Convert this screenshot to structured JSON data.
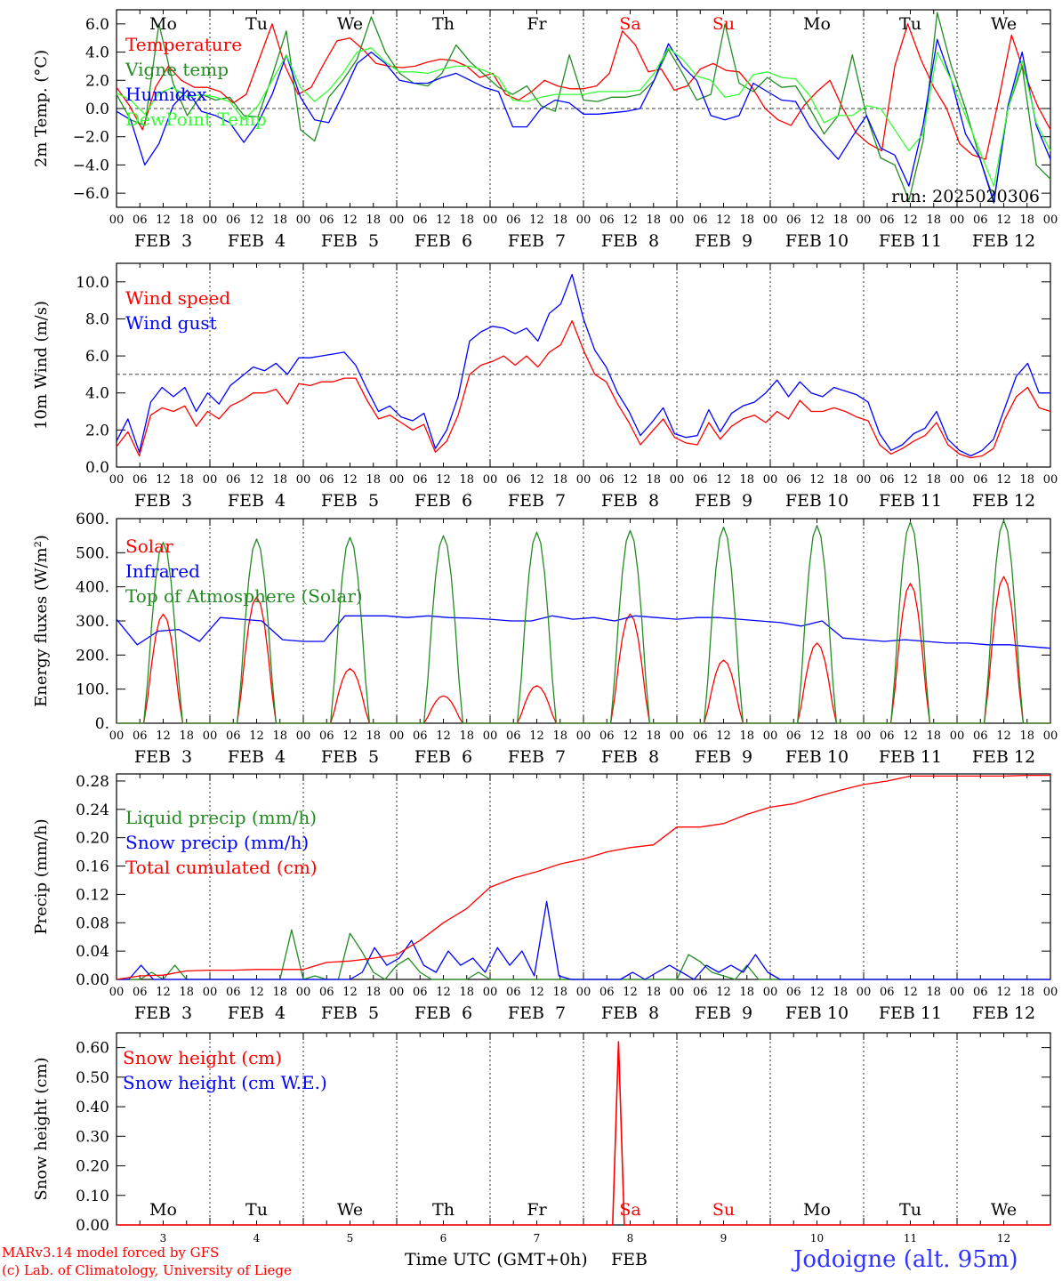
{
  "footer": {
    "model_line1": "MARv3.14 model forced by GFS",
    "model_line2": "(c) Lab. of Climatology, University of Liege",
    "xlabel": "Time UTC (GMT+0h)",
    "month": "FEB",
    "station": "Jodoigne (alt. 95m)",
    "colors": {
      "model": "#ff0000",
      "station": "#3333ff"
    }
  },
  "chart_data": [
    {
      "type": "line",
      "ylabel": "2m Temp. (°C)",
      "ylim": [
        -7,
        7
      ],
      "yticks": [
        -6,
        -4,
        -2,
        0,
        2,
        4,
        6
      ],
      "yticklabels": [
        "−6.0",
        "−4.0",
        "−2.0",
        "0.0",
        "2.0",
        "4.0",
        "6.0"
      ],
      "zero_line": 0,
      "annotation": "run: 2025020306",
      "weekdays": [
        "Mo",
        "Tu",
        "We",
        "Th",
        "Fr",
        "Sa",
        "Su",
        "Mo",
        "Tu",
        "We"
      ],
      "weekday_colors": [
        "#000000",
        "#000000",
        "#000000",
        "#000000",
        "#000000",
        "#ff0000",
        "#ff0000",
        "#000000",
        "#000000",
        "#000000"
      ],
      "hour_ticks": [
        "00",
        "06",
        "12",
        "18"
      ],
      "date_labels": [
        "FEB  3",
        "FEB  4",
        "FEB  5",
        "FEB  6",
        "FEB  7",
        "FEB  8",
        "FEB  9",
        "FEB 10",
        "FEB 11",
        "FEB 12"
      ],
      "legend_placement": "top-left",
      "x_hours": [
        0,
        3,
        6,
        9,
        12,
        15,
        18,
        21,
        24,
        27,
        30,
        33,
        36,
        39,
        42,
        45,
        48,
        51,
        54,
        57,
        60,
        63,
        66,
        69,
        72,
        75,
        78,
        81,
        84,
        87,
        90,
        93,
        96,
        99,
        102,
        105,
        108,
        111,
        114,
        117,
        120,
        123,
        126,
        129,
        132,
        135,
        138,
        141,
        144,
        147,
        150,
        153,
        156,
        159,
        162,
        165,
        168,
        171,
        174,
        177,
        180,
        183,
        186,
        189,
        192,
        195,
        198,
        201,
        204,
        207,
        210,
        213,
        216,
        219,
        222,
        225,
        228,
        231,
        234,
        237,
        240
      ],
      "series": [
        {
          "name": "Temperature",
          "color": "#ff0000",
          "values": [
            1.5,
            0.2,
            -1.5,
            1.5,
            3.0,
            2.0,
            1.5,
            1.5,
            1.2,
            0.4,
            1.0,
            3.5,
            6.0,
            3.0,
            1.0,
            1.5,
            3.2,
            4.8,
            5.0,
            4.2,
            3.2,
            3.0,
            2.9,
            3.0,
            3.3,
            3.5,
            3.4,
            3.0,
            2.2,
            2.5,
            1.0,
            0.6,
            1.2,
            2.0,
            1.6,
            1.4,
            1.4,
            1.6,
            2.5,
            5.5,
            4.5,
            2.6,
            2.8,
            1.3,
            1.6,
            2.8,
            3.2,
            2.7,
            2.6,
            1.5,
            0.0,
            -0.8,
            -1.2,
            0.2,
            1.2,
            2.0,
            0.0,
            -1.7,
            -2.5,
            -3.0,
            3.0,
            6.0,
            3.5,
            1.5,
            0.0,
            -2.5,
            -3.3,
            -3.6,
            0.6,
            5.2,
            2.5,
            0.2,
            -1.5
          ]
        },
        {
          "name": "Vigne temp",
          "color": "#228b22",
          "values": [
            1.0,
            -0.8,
            -1.2,
            6.0,
            1.8,
            -0.5,
            1.0,
            0.6,
            0.8,
            -0.5,
            -0.6,
            2.3,
            5.5,
            -1.5,
            -2.3,
            0.8,
            2.0,
            3.5,
            6.5,
            4.0,
            2.5,
            1.8,
            1.6,
            2.5,
            4.5,
            3.3,
            2.4,
            1.5,
            1.0,
            1.6,
            0.2,
            -0.2,
            3.8,
            0.6,
            0.5,
            0.8,
            0.8,
            1.0,
            2.0,
            4.2,
            2.5,
            0.6,
            1.0,
            6.0,
            1.8,
            1.2,
            2.2,
            1.5,
            1.6,
            0.0,
            -1.8,
            -0.5,
            3.8,
            -0.5,
            -3.5,
            -4.0,
            -6.5,
            -2.3,
            6.8,
            3.0,
            0.0,
            -3.5,
            -6.5,
            0.0,
            3.0,
            -4.0,
            -5.0
          ]
        },
        {
          "name": "Humidex",
          "color": "#0000ff",
          "values": [
            -0.2,
            -0.8,
            -4.0,
            -2.5,
            0.2,
            1.3,
            -0.2,
            -0.5,
            -1.0,
            -2.4,
            -1.0,
            1.0,
            3.8,
            0.8,
            -0.8,
            -1.0,
            1.0,
            3.2,
            4.0,
            3.2,
            2.0,
            1.8,
            1.8,
            2.2,
            2.5,
            2.0,
            1.5,
            1.2,
            -1.3,
            -1.3,
            0.0,
            0.6,
            0.4,
            -0.4,
            -0.4,
            -0.3,
            -0.2,
            0.0,
            2.0,
            4.6,
            3.0,
            2.0,
            -0.5,
            -0.8,
            -0.5,
            1.8,
            1.2,
            0.6,
            0.5,
            -1.3,
            -2.5,
            -3.6,
            -2.0,
            -0.5,
            -2.8,
            -3.3,
            -5.5,
            -1.2,
            4.9,
            2.0,
            -1.8,
            -3.5,
            -6.7,
            0.2,
            4.0,
            -1.2,
            -3.6
          ]
        },
        {
          "name": "DewPoint Temp",
          "color": "#33ff33",
          "values": [
            1.1,
            0.6,
            -0.4,
            1.1,
            1.5,
            0.8,
            1.0,
            0.8,
            0.5,
            -0.8,
            0.2,
            2.0,
            3.8,
            1.5,
            0.5,
            1.3,
            2.5,
            4.0,
            4.3,
            3.3,
            2.6,
            2.6,
            2.5,
            2.8,
            3.0,
            3.0,
            2.7,
            2.2,
            0.6,
            0.5,
            0.8,
            1.0,
            1.0,
            1.0,
            1.2,
            1.2,
            1.2,
            1.3,
            2.5,
            4.3,
            3.5,
            2.3,
            2.0,
            0.8,
            1.0,
            2.4,
            2.6,
            2.2,
            2.1,
            0.9,
            -1.0,
            -0.5,
            -0.5,
            0.2,
            0.0,
            -1.5,
            -3.0,
            -1.8,
            4.0,
            2.0,
            -0.5,
            -3.0,
            -5.5,
            0.0,
            3.4,
            -1.0,
            -3.0
          ]
        }
      ]
    },
    {
      "type": "line",
      "ylabel": "10m Wind (m/s)",
      "ylim": [
        0,
        11
      ],
      "yticks": [
        0,
        2,
        4,
        6,
        8,
        10
      ],
      "yticklabels": [
        "0.0",
        "2.0",
        "4.0",
        "6.0",
        "8.0",
        "10.0"
      ],
      "ref_line": 5,
      "hour_ticks": [
        "00",
        "06",
        "12",
        "18"
      ],
      "date_labels": [
        "FEB  3",
        "FEB  4",
        "FEB  5",
        "FEB  6",
        "FEB  7",
        "FEB  8",
        "FEB  9",
        "FEB 10",
        "FEB 11",
        "FEB 12"
      ],
      "legend_placement": "top-left",
      "series": [
        {
          "name": "Wind speed",
          "color": "#ff0000",
          "values": [
            1.1,
            1.9,
            0.6,
            2.8,
            3.2,
            3.0,
            3.3,
            2.2,
            3.0,
            2.6,
            3.3,
            3.6,
            4.0,
            4.0,
            4.2,
            3.4,
            4.5,
            4.4,
            4.6,
            4.6,
            4.8,
            4.8,
            3.6,
            2.6,
            2.8,
            2.4,
            2.0,
            2.3,
            0.8,
            1.4,
            2.8,
            5.0,
            5.5,
            5.7,
            6.0,
            5.5,
            6.0,
            5.4,
            6.2,
            6.6,
            7.9,
            6.3,
            5.0,
            4.6,
            3.4,
            2.4,
            1.2,
            1.9,
            2.6,
            1.6,
            1.3,
            1.2,
            2.4,
            1.5,
            2.2,
            2.6,
            2.8,
            2.4,
            3.0,
            2.6,
            3.6,
            3.0,
            3.0,
            3.2,
            3.0,
            2.7,
            2.5,
            1.2,
            0.7,
            1.0,
            1.4,
            1.7,
            2.4,
            1.2,
            0.7,
            0.5,
            0.6,
            1.0,
            2.6,
            3.8,
            4.3,
            3.2,
            3.0
          ]
        },
        {
          "name": "Wind gust",
          "color": "#0000ff",
          "values": [
            1.4,
            2.6,
            0.8,
            3.5,
            4.3,
            3.8,
            4.3,
            3.0,
            4.0,
            3.4,
            4.4,
            4.9,
            5.4,
            5.2,
            5.6,
            5.0,
            5.9,
            5.9,
            6.0,
            6.1,
            6.2,
            5.5,
            4.2,
            3.0,
            3.3,
            2.7,
            2.5,
            2.9,
            1.0,
            2.0,
            3.8,
            6.8,
            7.3,
            7.6,
            7.5,
            7.2,
            7.5,
            6.8,
            8.3,
            8.8,
            10.4,
            8.0,
            6.3,
            5.4,
            4.0,
            3.0,
            1.7,
            2.4,
            3.2,
            1.8,
            1.6,
            1.7,
            3.1,
            1.9,
            2.9,
            3.3,
            3.5,
            4.0,
            4.7,
            3.8,
            4.6,
            4.0,
            3.8,
            4.3,
            4.1,
            3.9,
            3.5,
            1.8,
            0.9,
            1.2,
            1.8,
            2.1,
            3.0,
            1.5,
            0.9,
            0.6,
            0.9,
            1.5,
            3.2,
            4.9,
            5.6,
            4.0,
            4.0
          ]
        }
      ]
    },
    {
      "type": "line",
      "ylabel": "Energy fluxes (W/m²)",
      "ylim": [
        0,
        600
      ],
      "yticks": [
        0,
        100,
        200,
        300,
        400,
        500,
        600
      ],
      "yticklabels": [
        "0.",
        "100.",
        "200.",
        "300.",
        "400.",
        "500.",
        "600."
      ],
      "hour_ticks": [
        "00",
        "06",
        "12",
        "18"
      ],
      "date_labels": [
        "FEB  3",
        "FEB  4",
        "FEB  5",
        "FEB  6",
        "FEB  7",
        "FEB  8",
        "FEB  9",
        "FEB 10",
        "FEB 11",
        "FEB 12"
      ],
      "legend_placement": "top-left",
      "series": [
        {
          "name": "Solar",
          "color": "#ff0000",
          "peaks": [
            320,
            370,
            160,
            80,
            110,
            320,
            185,
            235,
            410,
            430
          ]
        },
        {
          "name": "Infrared",
          "color": "#0000ff",
          "values": [
            305,
            230,
            270,
            275,
            240,
            310,
            305,
            300,
            245,
            240,
            240,
            315,
            315,
            315,
            310,
            315,
            310,
            308,
            305,
            300,
            300,
            315,
            305,
            310,
            300,
            315,
            310,
            305,
            310,
            310,
            305,
            300,
            295,
            285,
            300,
            250,
            245,
            240,
            245,
            240,
            235,
            235,
            230,
            230,
            225,
            220
          ]
        },
        {
          "name": "Top of Atmosphere (Solar)",
          "color": "#228b22",
          "peaks": [
            530,
            540,
            545,
            550,
            560,
            565,
            575,
            580,
            590,
            595
          ]
        }
      ]
    },
    {
      "type": "line",
      "ylabel": "Precip (mm/h)",
      "ylim": [
        0,
        0.29
      ],
      "yticks": [
        0,
        0.04,
        0.08,
        0.12,
        0.16,
        0.2,
        0.24,
        0.28
      ],
      "yticklabels": [
        "0.00",
        "0.04",
        "0.08",
        "0.12",
        "0.16",
        "0.20",
        "0.24",
        "0.28"
      ],
      "hour_ticks": [
        "00",
        "06",
        "12",
        "18"
      ],
      "date_labels": [
        "FEB  3",
        "FEB  4",
        "FEB  5",
        "FEB  6",
        "FEB  7",
        "FEB  8",
        "FEB  9",
        "FEB 10",
        "FEB 11",
        "FEB 12"
      ],
      "legend_placement": "top-left",
      "series": [
        {
          "name": "Liquid precip (mm/h)",
          "color": "#228b22",
          "values": [
            0,
            0,
            0,
            0.01,
            0,
            0.02,
            0,
            0,
            0,
            0,
            0,
            0,
            0,
            0,
            0,
            0.07,
            0,
            0.005,
            0,
            0,
            0.065,
            0.04,
            0.01,
            0,
            0.02,
            0.03,
            0.01,
            0,
            0,
            0,
            0,
            0.01,
            0,
            0,
            0,
            0,
            0,
            0,
            0,
            0,
            0,
            0,
            0,
            0,
            0,
            0,
            0,
            0,
            0,
            0.035,
            0.025,
            0.01,
            0.005,
            0,
            0.02,
            0,
            0,
            0,
            0,
            0,
            0,
            0,
            0,
            0,
            0,
            0,
            0,
            0,
            0,
            0,
            0,
            0,
            0,
            0,
            0,
            0,
            0,
            0,
            0,
            0,
            0
          ]
        },
        {
          "name": "Snow precip (mm/h)",
          "color": "#0000ff",
          "values": [
            0,
            0,
            0.02,
            0,
            0,
            0,
            0,
            0,
            0,
            0,
            0,
            0,
            0,
            0,
            0,
            0,
            0,
            0,
            0,
            0,
            0.01,
            0.045,
            0.02,
            0.03,
            0.055,
            0.02,
            0.01,
            0.04,
            0.02,
            0.03,
            0.01,
            0.045,
            0.02,
            0.04,
            0.005,
            0.11,
            0.005,
            0,
            0,
            0,
            0,
            0,
            0.01,
            0,
            0.01,
            0.02,
            0.01,
            0,
            0.02,
            0.01,
            0.02,
            0.01,
            0.035,
            0.01,
            0,
            0,
            0,
            0,
            0,
            0,
            0,
            0,
            0,
            0,
            0,
            0,
            0,
            0,
            0,
            0,
            0,
            0,
            0,
            0,
            0,
            0,
            0
          ]
        },
        {
          "name": "Total cumulated (cm)",
          "color": "#ff0000",
          "values": [
            0,
            0.005,
            0.006,
            0.012,
            0.013,
            0.013,
            0.014,
            0.014,
            0.014,
            0.024,
            0.026,
            0.03,
            0.035,
            0.055,
            0.08,
            0.1,
            0.13,
            0.143,
            0.152,
            0.163,
            0.17,
            0.18,
            0.186,
            0.19,
            0.215,
            0.215,
            0.22,
            0.233,
            0.243,
            0.248,
            0.258,
            0.267,
            0.275,
            0.28,
            0.287,
            0.287,
            0.287,
            0.287,
            0.287,
            0.288,
            0.288
          ]
        }
      ]
    },
    {
      "type": "line",
      "ylabel": "Snow height (cm)",
      "ylim": [
        0,
        0.65
      ],
      "yticks": [
        0,
        0.1,
        0.2,
        0.3,
        0.4,
        0.5,
        0.6
      ],
      "yticklabels": [
        "0.00",
        "0.10",
        "0.20",
        "0.30",
        "0.40",
        "0.50",
        "0.60"
      ],
      "weekdays": [
        "Mo",
        "Tu",
        "We",
        "Th",
        "Fr",
        "Sa",
        "Su",
        "Mo",
        "Tu",
        "We"
      ],
      "weekday_colors": [
        "#000000",
        "#000000",
        "#000000",
        "#000000",
        "#000000",
        "#ff0000",
        "#ff0000",
        "#000000",
        "#000000",
        "#000000"
      ],
      "day_numbers": [
        "3",
        "4",
        "5",
        "6",
        "7",
        "8",
        "9",
        "10",
        "11",
        "12"
      ],
      "legend_placement": "top-left",
      "series": [
        {
          "name": "Snow height (cm)",
          "color": "#ff0000",
          "spike_hour": 129,
          "spike_value": 0.62
        },
        {
          "name": "Snow height (cm W.E.)",
          "color": "#0000ff",
          "values": [
            0
          ]
        }
      ]
    }
  ]
}
